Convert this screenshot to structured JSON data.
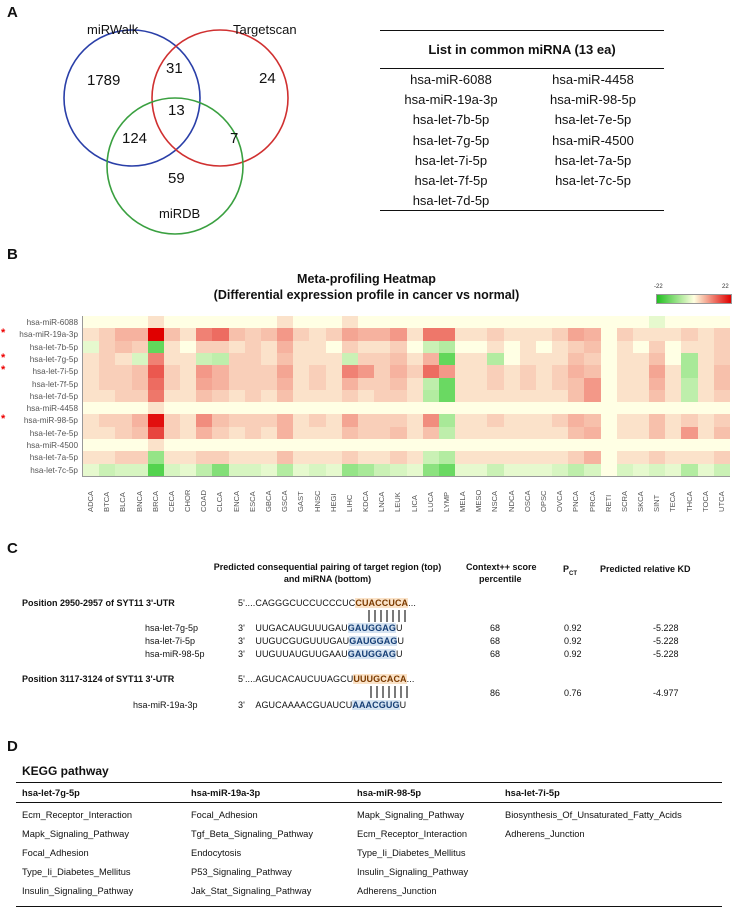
{
  "panels": {
    "a": "A",
    "b": "B",
    "c": "C",
    "d": "D"
  },
  "venn": {
    "sets": [
      "miRWalk",
      "Targetscan",
      "miRDB"
    ],
    "counts": {
      "walk_only": "1789",
      "walk_ts": "31",
      "ts_only": "24",
      "all": "13",
      "walk_db": "124",
      "ts_db": "7",
      "db_only": "59"
    },
    "colors": {
      "miRWalk": "#2a3fa8",
      "Targetscan": "#d03030",
      "miRDB": "#3aa040"
    }
  },
  "mirna_list": {
    "title": "List in common miRNA (13 ea)",
    "left": [
      "hsa-miR-6088",
      "hsa-miR-19a-3p",
      "hsa-let-7b-5p",
      "hsa-let-7g-5p",
      "hsa-let-7i-5p",
      "hsa-let-7f-5p",
      "hsa-let-7d-5p"
    ],
    "right": [
      "hsa-miR-4458",
      "hsa-miR-98-5p",
      "hsa-let-7e-5p",
      "hsa-miR-4500",
      "hsa-let-7a-5p",
      "hsa-let-7c-5p"
    ]
  },
  "heatmap": {
    "title1": "Meta-profiling Heatmap",
    "title2": "(Differential expression profile in cancer vs normal)",
    "scale_min": "-22",
    "scale_max": "22",
    "rows": [
      "hsa-miR-6088",
      "hsa-miR-19a-3p",
      "hsa-let-7b-5p",
      "hsa-let-7g-5p",
      "hsa-let-7i-5p",
      "hsa-let-7f-5p",
      "hsa-let-7d-5p",
      "hsa-miR-4458",
      "hsa-miR-98-5p",
      "hsa-let-7e-5p",
      "hsa-miR-4500",
      "hsa-let-7a-5p",
      "hsa-let-7c-5p"
    ],
    "starred": [
      false,
      true,
      false,
      true,
      true,
      false,
      false,
      false,
      true,
      false,
      false,
      false,
      false
    ],
    "cols": [
      "ADCA",
      "BTCA",
      "BLCA",
      "BNCA",
      "BRCA",
      "CECA",
      "CHOR",
      "COAD",
      "CLCA",
      "ENCA",
      "ESCA",
      "GBCA",
      "GSCA",
      "GAST",
      "HNSC",
      "HEGI",
      "LIHC",
      "KDCA",
      "LNCA",
      "LEUK",
      "LICA",
      "LUCA",
      "LYMP",
      "MELA",
      "MESO",
      "NSCA",
      "NDCA",
      "OSCA",
      "OPSC",
      "OVCA",
      "PNCA",
      "PRCA",
      "RETI",
      "SCRA",
      "SKCA",
      "SINT",
      "TECA",
      "THCA",
      "TOCA",
      "UTCA"
    ],
    "values": [
      [
        0,
        0,
        0,
        0,
        1,
        0,
        0,
        0,
        0,
        0,
        0,
        0,
        1,
        0,
        0,
        0,
        1,
        0,
        0,
        0,
        0,
        0,
        0,
        0,
        0,
        0,
        0,
        0,
        0,
        0,
        0,
        0,
        0,
        0,
        0,
        -1,
        0,
        0,
        0,
        0
      ],
      [
        1,
        2,
        4,
        4,
        22,
        3,
        1,
        8,
        10,
        3,
        2,
        3,
        6,
        2,
        1,
        2,
        5,
        4,
        4,
        6,
        1,
        9,
        9,
        1,
        1,
        2,
        1,
        1,
        1,
        2,
        5,
        4,
        0,
        2,
        1,
        1,
        1,
        2,
        1,
        2
      ],
      [
        -1,
        2,
        3,
        2,
        -14,
        1,
        0,
        2,
        2,
        1,
        2,
        1,
        4,
        1,
        1,
        0,
        2,
        1,
        1,
        2,
        0,
        -3,
        -5,
        0,
        0,
        1,
        0,
        1,
        0,
        1,
        2,
        3,
        0,
        1,
        0,
        2,
        0,
        1,
        1,
        2
      ],
      [
        1,
        2,
        1,
        -2,
        8,
        1,
        1,
        -3,
        -4,
        2,
        2,
        1,
        3,
        1,
        1,
        1,
        -3,
        2,
        2,
        3,
        1,
        4,
        -14,
        1,
        1,
        -5,
        0,
        1,
        1,
        1,
        3,
        2,
        0,
        1,
        1,
        3,
        0,
        -6,
        1,
        2
      ],
      [
        1,
        2,
        2,
        3,
        12,
        2,
        1,
        6,
        4,
        2,
        2,
        2,
        5,
        1,
        2,
        1,
        8,
        6,
        2,
        4,
        2,
        10,
        6,
        1,
        1,
        2,
        1,
        2,
        1,
        2,
        4,
        3,
        0,
        1,
        1,
        5,
        1,
        -6,
        1,
        3
      ],
      [
        1,
        2,
        2,
        3,
        10,
        2,
        1,
        5,
        4,
        2,
        2,
        2,
        4,
        1,
        2,
        1,
        4,
        2,
        2,
        3,
        1,
        -4,
        -13,
        1,
        1,
        2,
        1,
        2,
        1,
        2,
        3,
        6,
        0,
        1,
        1,
        4,
        1,
        -4,
        1,
        3
      ],
      [
        1,
        1,
        2,
        2,
        9,
        1,
        1,
        3,
        2,
        1,
        2,
        1,
        3,
        1,
        1,
        1,
        2,
        1,
        2,
        2,
        1,
        -5,
        -13,
        1,
        1,
        1,
        1,
        1,
        1,
        1,
        3,
        6,
        0,
        1,
        1,
        3,
        1,
        -4,
        1,
        2
      ],
      [
        0,
        0,
        0,
        0,
        1,
        0,
        0,
        0,
        0,
        0,
        0,
        0,
        0,
        0,
        0,
        0,
        0,
        0,
        0,
        0,
        0,
        0,
        0,
        0,
        0,
        0,
        0,
        0,
        0,
        0,
        0,
        0,
        0,
        0,
        0,
        0,
        0,
        0,
        0,
        0
      ],
      [
        1,
        2,
        2,
        4,
        20,
        2,
        1,
        7,
        3,
        2,
        2,
        2,
        4,
        1,
        2,
        1,
        5,
        2,
        2,
        2,
        1,
        7,
        -6,
        1,
        1,
        2,
        1,
        1,
        1,
        2,
        4,
        3,
        0,
        1,
        1,
        3,
        1,
        2,
        1,
        2
      ],
      [
        1,
        1,
        2,
        3,
        14,
        2,
        1,
        4,
        2,
        1,
        2,
        1,
        4,
        1,
        1,
        1,
        3,
        2,
        2,
        3,
        1,
        3,
        -4,
        1,
        1,
        1,
        1,
        1,
        1,
        1,
        3,
        4,
        0,
        1,
        1,
        3,
        1,
        6,
        1,
        3
      ],
      [
        0,
        0,
        0,
        0,
        1,
        0,
        0,
        0,
        0,
        0,
        0,
        0,
        0,
        0,
        0,
        0,
        0,
        0,
        0,
        0,
        0,
        0,
        0,
        0,
        0,
        0,
        0,
        0,
        0,
        0,
        0,
        0,
        0,
        0,
        0,
        0,
        0,
        0,
        0,
        0
      ],
      [
        1,
        1,
        2,
        2,
        -8,
        1,
        1,
        2,
        2,
        1,
        1,
        1,
        3,
        1,
        1,
        1,
        2,
        1,
        1,
        2,
        1,
        -3,
        -5,
        1,
        1,
        1,
        1,
        1,
        1,
        1,
        2,
        4,
        0,
        1,
        1,
        2,
        1,
        1,
        1,
        2
      ],
      [
        -1,
        -3,
        -2,
        -2,
        -16,
        -2,
        -1,
        -4,
        -10,
        -2,
        -2,
        -1,
        -5,
        -1,
        -2,
        -1,
        -8,
        -6,
        -3,
        -2,
        -1,
        -9,
        -13,
        -1,
        -1,
        -3,
        -1,
        -1,
        -1,
        -2,
        -4,
        -2,
        0,
        -2,
        -1,
        -2,
        -1,
        -5,
        -1,
        -3
      ]
    ]
  },
  "pairing": {
    "header_main": "Predicted consequential pairing of target region (top)",
    "header_main2": "and miRNA (bottom)",
    "header_score": "Context++ score",
    "header_score2": "percentile",
    "header_pct": "P",
    "header_pct_sub": "CT",
    "header_kd": "Predicted relative KD",
    "block1": {
      "label": "Position 2950-2957 of SYT11 3'-UTR",
      "target_prime": "5'",
      "target_pre": "....CAGGGCUCCUCCCUC",
      "target_seed": "CUACCUCA",
      "target_post": "...",
      "rows": [
        {
          "name": "hsa-let-7g-5p",
          "prime": "3'",
          "pre": "UUGACAUGUUUGAU",
          "seed": "GAUGGAG",
          "post": "U",
          "score": "68",
          "pct": "0.92",
          "kd": "-5.228"
        },
        {
          "name": "hsa-let-7i-5p",
          "prime": "3'",
          "pre": "UUGUCGUGUUUGAU",
          "seed": "GAUGGAG",
          "post": "U",
          "score": "68",
          "pct": "0.92",
          "kd": "-5.228"
        },
        {
          "name": "hsa-miR-98-5p",
          "prime": "3'",
          "pre": "UUGUUAUGUUGAAU",
          "seed": "GAUGGAG",
          "post": "U",
          "score": "68",
          "pct": "0.92",
          "kd": "-5.228"
        }
      ]
    },
    "block2": {
      "label": "Position 3117-3124 of SYT11 3'-UTR",
      "target_prime": "5'",
      "target_pre": "....AGUCACAUCUUAGCU",
      "target_seed": "UUUGCACA",
      "target_post": "...",
      "rows": [
        {
          "name": "hsa-miR-19a-3p",
          "prime": "3'",
          "pre": "AGUCAAAACGUAUCU",
          "seed": "AAACGUG",
          "post": "U",
          "score": "86",
          "pct": "0.76",
          "kd": "-4.977"
        }
      ]
    }
  },
  "kegg": {
    "title": "KEGG pathway",
    "headers": [
      "hsa-let-7g-5p",
      "hsa-miR-19a-3p",
      "hsa-miR-98-5p",
      "hsa-let-7i-5p"
    ],
    "columns": [
      [
        "Ecm_Receptor_Interaction",
        "Mapk_Signaling_Pathway",
        "Focal_Adhesion",
        "Type_Ii_Diabetes_Mellitus",
        "Insulin_Signaling_Pathway"
      ],
      [
        "Focal_Adhesion",
        "Tgf_Beta_Signaling_Pathway",
        "Endocytosis",
        "P53_Signaling_Pathway",
        "Jak_Stat_Signaling_Pathway"
      ],
      [
        "Mapk_Signaling_Pathway",
        "Ecm_Receptor_Interaction",
        "Type_Ii_Diabetes_Mellitus",
        "Insulin_Signaling_Pathway",
        "Adherens_Junction"
      ],
      [
        "Biosynthesis_Of_Unsaturated_Fatty_Acids",
        "Adherens_Junction",
        "",
        "",
        ""
      ]
    ]
  }
}
